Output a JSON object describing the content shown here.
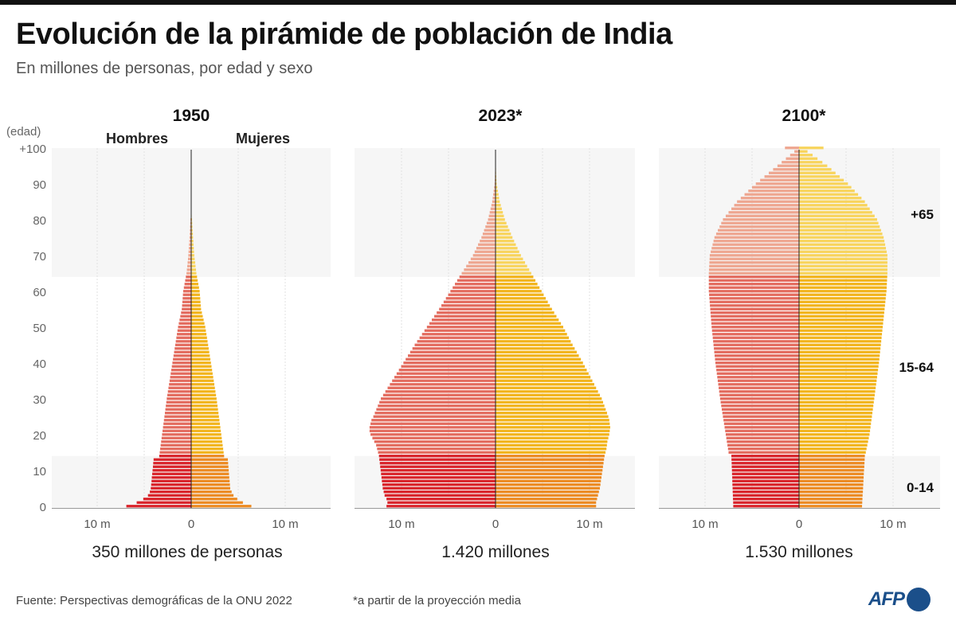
{
  "title": "Evolución de la pirámide de población de India",
  "subtitle": "En millones de personas, por edad y sexo",
  "footer": {
    "source": "Fuente: Perspectivas demográficas de la ONU 2022",
    "note": "*a partir de la proyección media",
    "logo": "AFP"
  },
  "chart_data": {
    "type": "bar",
    "orientation": "horizontal population pyramid",
    "y_axis_label": "(edad)",
    "y_ticks": [
      "0",
      "10",
      "20",
      "30",
      "40",
      "50",
      "60",
      "70",
      "80",
      "90",
      "+100"
    ],
    "x_tick_labels": [
      "10 m",
      "0",
      "10 m"
    ],
    "x_unit": "millones de personas",
    "xlim": [
      -15,
      15
    ],
    "sex_labels": {
      "male": "Hombres",
      "female": "Mujeres"
    },
    "age_group_labels": [
      "+65",
      "15-64",
      "0-14"
    ],
    "colors": {
      "male_0_14": "#d9232a",
      "male_15_64": "#e36b5e",
      "male_65": "#eea690",
      "female_0_14": "#ec8a22",
      "female_15_64": "#f2b41c",
      "female_65": "#f8d45c",
      "band": "#f6f6f6"
    },
    "grid": true,
    "panels": [
      {
        "year": "1950",
        "total": "350 millones de personas",
        "male": [
          6.9,
          5.8,
          5.1,
          4.6,
          4.4,
          4.3,
          4.26,
          4.22,
          4.19,
          4.15,
          4.11,
          4.07,
          4.04,
          4.0,
          3.4,
          3.35,
          3.3,
          3.25,
          3.2,
          3.15,
          3.1,
          3.05,
          3.0,
          2.95,
          2.9,
          2.85,
          2.8,
          2.75,
          2.7,
          2.65,
          2.6,
          2.54,
          2.48,
          2.42,
          2.36,
          2.3,
          2.24,
          2.18,
          2.12,
          2.06,
          2.0,
          1.94,
          1.88,
          1.82,
          1.76,
          1.7,
          1.64,
          1.58,
          1.52,
          1.46,
          1.4,
          1.32,
          1.24,
          1.16,
          1.08,
          1.0,
          0.97,
          0.94,
          0.91,
          0.88,
          0.85,
          0.78,
          0.71,
          0.64,
          0.57,
          0.5,
          0.46,
          0.42,
          0.38,
          0.34,
          0.3,
          0.28,
          0.25,
          0.23,
          0.2,
          0.18,
          0.16,
          0.14,
          0.12,
          0.1,
          0.08,
          0.04,
          0,
          0,
          0,
          0,
          0,
          0,
          0,
          0,
          0,
          0,
          0,
          0,
          0,
          0,
          0,
          0,
          0,
          0,
          0
        ],
        "female": [
          6.4,
          5.5,
          4.9,
          4.5,
          4.3,
          4.15,
          4.12,
          4.09,
          4.05,
          4.02,
          3.99,
          3.96,
          3.93,
          3.9,
          3.5,
          3.45,
          3.4,
          3.35,
          3.3,
          3.25,
          3.2,
          3.15,
          3.1,
          3.05,
          3.0,
          2.95,
          2.9,
          2.85,
          2.8,
          2.75,
          2.7,
          2.64,
          2.58,
          2.52,
          2.46,
          2.4,
          2.34,
          2.28,
          2.22,
          2.16,
          2.1,
          2.04,
          1.98,
          1.92,
          1.86,
          1.8,
          1.74,
          1.68,
          1.62,
          1.56,
          1.5,
          1.41,
          1.32,
          1.23,
          1.14,
          1.05,
          1.02,
          0.99,
          0.96,
          0.93,
          0.9,
          0.83,
          0.76,
          0.69,
          0.62,
          0.55,
          0.51,
          0.46,
          0.42,
          0.37,
          0.33,
          0.3,
          0.28,
          0.25,
          0.23,
          0.2,
          0.18,
          0.15,
          0.13,
          0.11,
          0.09,
          0.05,
          0.02,
          0,
          0,
          0,
          0,
          0,
          0,
          0,
          0,
          0,
          0,
          0,
          0,
          0,
          0,
          0,
          0,
          0,
          0
        ]
      },
      {
        "year": "2023*",
        "total": "1.420 millones",
        "male": [
          11.6,
          11.5,
          11.6,
          11.8,
          11.9,
          12.0,
          12.04,
          12.09,
          12.13,
          12.18,
          12.22,
          12.27,
          12.31,
          12.36,
          12.4,
          12.5,
          12.6,
          12.7,
          12.9,
          13.1,
          13.3,
          13.4,
          13.4,
          13.3,
          13.2,
          13.0,
          12.84,
          12.68,
          12.52,
          12.36,
          12.2,
          11.96,
          11.72,
          11.48,
          11.24,
          11.0,
          10.76,
          10.52,
          10.28,
          10.04,
          9.8,
          9.56,
          9.32,
          9.08,
          8.84,
          8.6,
          8.34,
          8.08,
          7.82,
          7.56,
          7.3,
          7.04,
          6.78,
          6.52,
          6.26,
          6.0,
          5.76,
          5.52,
          5.28,
          5.04,
          4.8,
          4.56,
          4.32,
          4.08,
          3.84,
          3.6,
          3.36,
          3.12,
          2.88,
          2.64,
          2.4,
          2.22,
          2.04,
          1.86,
          1.68,
          1.5,
          1.36,
          1.22,
          1.08,
          0.94,
          0.8,
          0.71,
          0.62,
          0.53,
          0.44,
          0.35,
          0.3,
          0.25,
          0.2,
          0.15,
          0.1,
          0.08,
          0.06,
          0.05,
          0.03,
          0.02,
          0.01,
          0.01,
          0,
          0,
          0
        ],
        "female": [
          10.7,
          10.7,
          10.8,
          10.9,
          11.0,
          11.1,
          11.16,
          11.21,
          11.27,
          11.32,
          11.38,
          11.43,
          11.49,
          11.54,
          11.6,
          11.7,
          11.8,
          11.85,
          11.9,
          12.0,
          12.1,
          12.15,
          12.2,
          12.15,
          12.1,
          12.0,
          11.86,
          11.72,
          11.58,
          11.44,
          11.3,
          11.1,
          10.9,
          10.7,
          10.5,
          10.3,
          10.1,
          9.9,
          9.7,
          9.5,
          9.3,
          9.08,
          8.86,
          8.64,
          8.42,
          8.2,
          8.0,
          7.8,
          7.6,
          7.4,
          7.2,
          6.96,
          6.72,
          6.48,
          6.24,
          6.0,
          5.78,
          5.56,
          5.34,
          5.12,
          4.9,
          4.68,
          4.46,
          4.24,
          4.02,
          3.8,
          3.58,
          3.36,
          3.14,
          2.92,
          2.7,
          2.52,
          2.34,
          2.16,
          1.98,
          1.8,
          1.64,
          1.48,
          1.32,
          1.16,
          1.0,
          0.89,
          0.78,
          0.67,
          0.56,
          0.45,
          0.38,
          0.32,
          0.25,
          0.19,
          0.12,
          0.1,
          0.08,
          0.06,
          0.05,
          0.03,
          0.02,
          0.01,
          0.01,
          0,
          0
        ]
      },
      {
        "year": "2100*",
        "total": "1.530 millones",
        "male": [
          7.0,
          7.01,
          7.03,
          7.04,
          7.06,
          7.07,
          7.09,
          7.1,
          7.11,
          7.13,
          7.14,
          7.16,
          7.17,
          7.19,
          7.2,
          7.5,
          7.56,
          7.62,
          7.68,
          7.74,
          7.8,
          7.86,
          7.92,
          7.98,
          8.04,
          8.1,
          8.16,
          8.22,
          8.28,
          8.34,
          8.4,
          8.45,
          8.5,
          8.55,
          8.6,
          8.65,
          8.7,
          8.75,
          8.8,
          8.85,
          8.9,
          8.94,
          8.98,
          9.02,
          9.06,
          9.1,
          9.14,
          9.18,
          9.22,
          9.26,
          9.3,
          9.33,
          9.36,
          9.39,
          9.42,
          9.45,
          9.48,
          9.51,
          9.54,
          9.57,
          9.6,
          9.6,
          9.6,
          9.6,
          9.6,
          9.6,
          9.58,
          9.56,
          9.54,
          9.52,
          9.5,
          9.4,
          9.3,
          9.2,
          9.1,
          9.0,
          8.82,
          8.64,
          8.46,
          8.28,
          8.1,
          7.8,
          7.5,
          7.2,
          6.9,
          6.6,
          6.2,
          5.8,
          5.4,
          5.0,
          4.6,
          4.14,
          3.68,
          3.22,
          2.76,
          2.3,
          1.85,
          1.4,
          0.95,
          0.5,
          1.5
        ],
        "female": [
          6.7,
          6.72,
          6.74,
          6.76,
          6.79,
          6.81,
          6.83,
          6.85,
          6.87,
          6.89,
          6.91,
          6.94,
          6.96,
          6.98,
          7.0,
          7.1,
          7.18,
          7.26,
          7.34,
          7.42,
          7.5,
          7.55,
          7.6,
          7.65,
          7.7,
          7.75,
          7.8,
          7.85,
          7.9,
          7.95,
          8.0,
          8.05,
          8.1,
          8.15,
          8.2,
          8.25,
          8.3,
          8.35,
          8.4,
          8.45,
          8.5,
          8.54,
          8.58,
          8.62,
          8.66,
          8.7,
          8.74,
          8.78,
          8.82,
          8.86,
          8.9,
          8.94,
          8.98,
          9.02,
          9.06,
          9.1,
          9.14,
          9.18,
          9.22,
          9.26,
          9.3,
          9.32,
          9.34,
          9.36,
          9.38,
          9.4,
          9.4,
          9.4,
          9.4,
          9.4,
          9.4,
          9.32,
          9.24,
          9.16,
          9.08,
          9.0,
          8.86,
          8.72,
          8.58,
          8.44,
          8.3,
          8.04,
          7.78,
          7.52,
          7.26,
          7.0,
          6.64,
          6.28,
          5.92,
          5.56,
          5.2,
          4.76,
          4.32,
          3.88,
          3.44,
          3.0,
          2.48,
          1.96,
          1.44,
          0.9,
          2.6
        ]
      }
    ]
  }
}
